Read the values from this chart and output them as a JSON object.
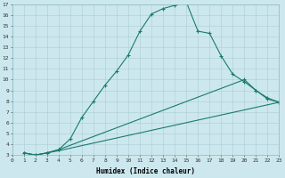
{
  "xlabel": "Humidex (Indice chaleur)",
  "bg_color": "#cce8ee",
  "line_color": "#1a7a6e",
  "grid_color": "#aacdd6",
  "ylim": [
    3,
    17
  ],
  "xlim": [
    0,
    23
  ],
  "yticks": [
    3,
    4,
    5,
    6,
    7,
    8,
    9,
    10,
    11,
    12,
    13,
    14,
    15,
    16,
    17
  ],
  "xticks": [
    0,
    1,
    2,
    3,
    4,
    5,
    6,
    7,
    8,
    9,
    10,
    11,
    12,
    13,
    14,
    15,
    16,
    17,
    18,
    19,
    20,
    21,
    22,
    23
  ],
  "line1_x": [
    1,
    2,
    3,
    4,
    5,
    6,
    7,
    8,
    9,
    10,
    11,
    12,
    13,
    14,
    15,
    16,
    17,
    18,
    19,
    20,
    21,
    22,
    23
  ],
  "line1_y": [
    3.2,
    3.0,
    3.2,
    3.5,
    4.5,
    6.5,
    8.0,
    9.5,
    10.8,
    12.3,
    14.5,
    16.1,
    16.6,
    16.9,
    17.2,
    14.5,
    14.3,
    12.2,
    10.5,
    9.8,
    9.0,
    8.2,
    7.9
  ],
  "line2_x": [
    1,
    2,
    3,
    4,
    20,
    21,
    22,
    23
  ],
  "line2_y": [
    3.2,
    3.0,
    3.2,
    3.5,
    10.0,
    9.0,
    8.3,
    7.9
  ],
  "line3_x": [
    1,
    2,
    3,
    4,
    23
  ],
  "line3_y": [
    3.2,
    3.0,
    3.2,
    3.4,
    7.9
  ],
  "xlabel_fontsize": 5.5,
  "tick_fontsize": 4.5
}
